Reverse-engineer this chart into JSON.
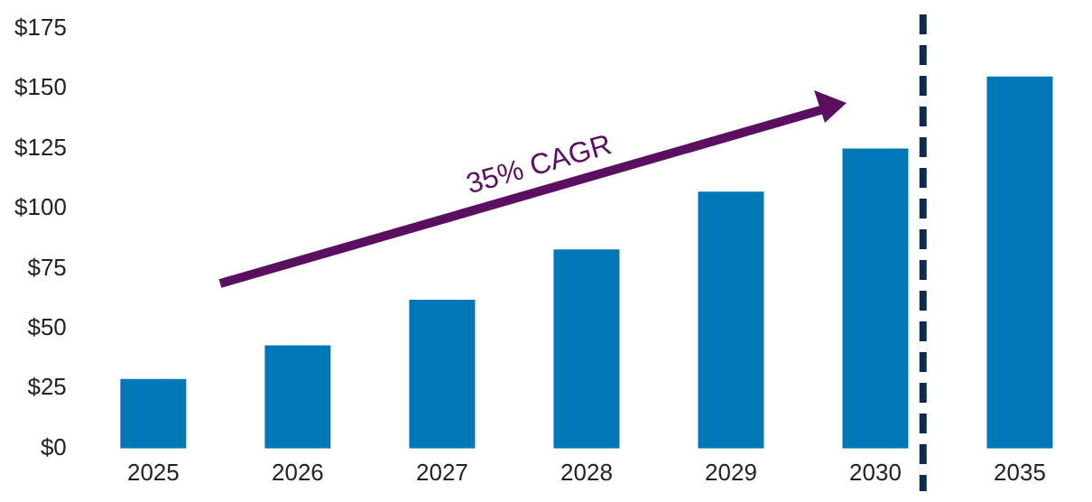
{
  "chart_data": {
    "type": "bar",
    "categories": [
      "2025",
      "2026",
      "2027",
      "2028",
      "2029",
      "2030",
      "2035"
    ],
    "values": [
      29,
      43,
      62,
      83,
      107,
      125,
      155
    ],
    "color": "#0077b6",
    "ylim": [
      0,
      175
    ],
    "yticks": [
      {
        "value": 0,
        "label": "$0"
      },
      {
        "value": 25,
        "label": "$25"
      },
      {
        "value": 50,
        "label": "$50"
      },
      {
        "value": 75,
        "label": "$75"
      },
      {
        "value": 100,
        "label": "$100"
      },
      {
        "value": 125,
        "label": "$125"
      },
      {
        "value": 150,
        "label": "$150"
      },
      {
        "value": 175,
        "label": "$175"
      }
    ],
    "annotations": [
      "35% CAGR"
    ],
    "ref_lines": [
      {
        "axis": "x",
        "value": "2030",
        "color": "#0d2a55",
        "line_style": "dashed"
      }
    ],
    "grid": false,
    "legend": false
  }
}
